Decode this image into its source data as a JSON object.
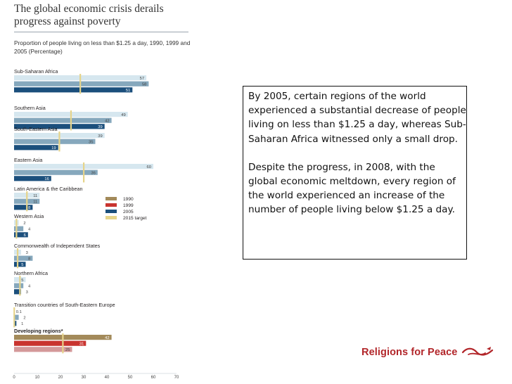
{
  "page": {
    "title": "The global economic crisis derails progress against poverty",
    "textbox": {
      "paragraph1": "By 2005, certain regions of the world experienced a substantial decrease of people living on less than $1.25 a day, whereas Sub-Saharan Africa witnessed only a small drop.",
      "paragraph2": "Despite the progress, in 2008, with the global economic meltdown, every region of the world experienced an increase of the number of people living below $1.25 a day."
    },
    "brand": {
      "name": "Religions for Peace",
      "color": "#b2262a"
    }
  },
  "chart_data": {
    "type": "bar",
    "title": "Proportion of people living on less than $1.25 a day, 1990, 1999 and 2005 (Percentage)",
    "xlim": [
      0,
      70
    ],
    "x_ticks": [
      0,
      10,
      20,
      30,
      40,
      50,
      60,
      70
    ],
    "legend": {
      "placement": "right",
      "entries": [
        {
          "label": "1990",
          "color": "#a38a5a"
        },
        {
          "label": "1999",
          "color": "#c9342f"
        },
        {
          "label": "2005",
          "color": "#1b4f7c"
        },
        {
          "label": "2015 target",
          "color": "#e6d48a"
        }
      ]
    },
    "colors": {
      "regional": {
        "1990": "#d6e7ef",
        "1999": "#86a8bd",
        "2005": "#1b4f7c"
      },
      "developing": {
        "1990": "#a38a5a",
        "1999": "#c9342f",
        "2005": "#d4999a"
      },
      "target": "#e6d48a"
    },
    "regions": [
      {
        "name": "Sub-Saharan Africa",
        "values": [
          57,
          58,
          51
        ],
        "labels": [
          "57",
          "58",
          "51"
        ],
        "target": 28.5
      },
      {
        "name": "Southern Asia",
        "values": [
          49,
          42,
          39
        ],
        "labels": [
          "49",
          "42",
          "39"
        ],
        "target": 24.5
      },
      {
        "name": "South-Eastern Asia",
        "values": [
          39,
          35,
          19
        ],
        "labels": [
          "39",
          "35",
          "19"
        ],
        "target": 19.5
      },
      {
        "name": "Eastern Asia",
        "values": [
          60,
          36,
          16
        ],
        "labels": [
          "60",
          "36",
          "16"
        ],
        "target": 30
      },
      {
        "name": "Latin America & the Caribbean",
        "values": [
          11,
          11,
          8
        ],
        "labels": [
          "11",
          "11",
          "8"
        ],
        "target": 5.5
      },
      {
        "name": "Western Asia",
        "values": [
          2,
          4,
          6
        ],
        "labels": [
          "2",
          "4",
          "6"
        ],
        "target": 1
      },
      {
        "name": "Commonwealth of Independent States",
        "values": [
          3,
          8,
          5
        ],
        "labels": [
          "3",
          "8",
          "5"
        ],
        "target": 1.5
      },
      {
        "name": "Northern Africa",
        "values": [
          5,
          4,
          3
        ],
        "labels": [
          "5",
          "4",
          "3"
        ],
        "target": 2.5
      },
      {
        "name": "Transition countries of South-Eastern Europe",
        "values": [
          0.1,
          2,
          1
        ],
        "labels": [
          "0.1",
          "2",
          "1"
        ],
        "target": 0.05
      },
      {
        "name": "Developing regions*",
        "values": [
          42,
          31,
          25
        ],
        "labels": [
          "42",
          "31",
          "25"
        ],
        "target": 21,
        "developing": true
      }
    ]
  }
}
